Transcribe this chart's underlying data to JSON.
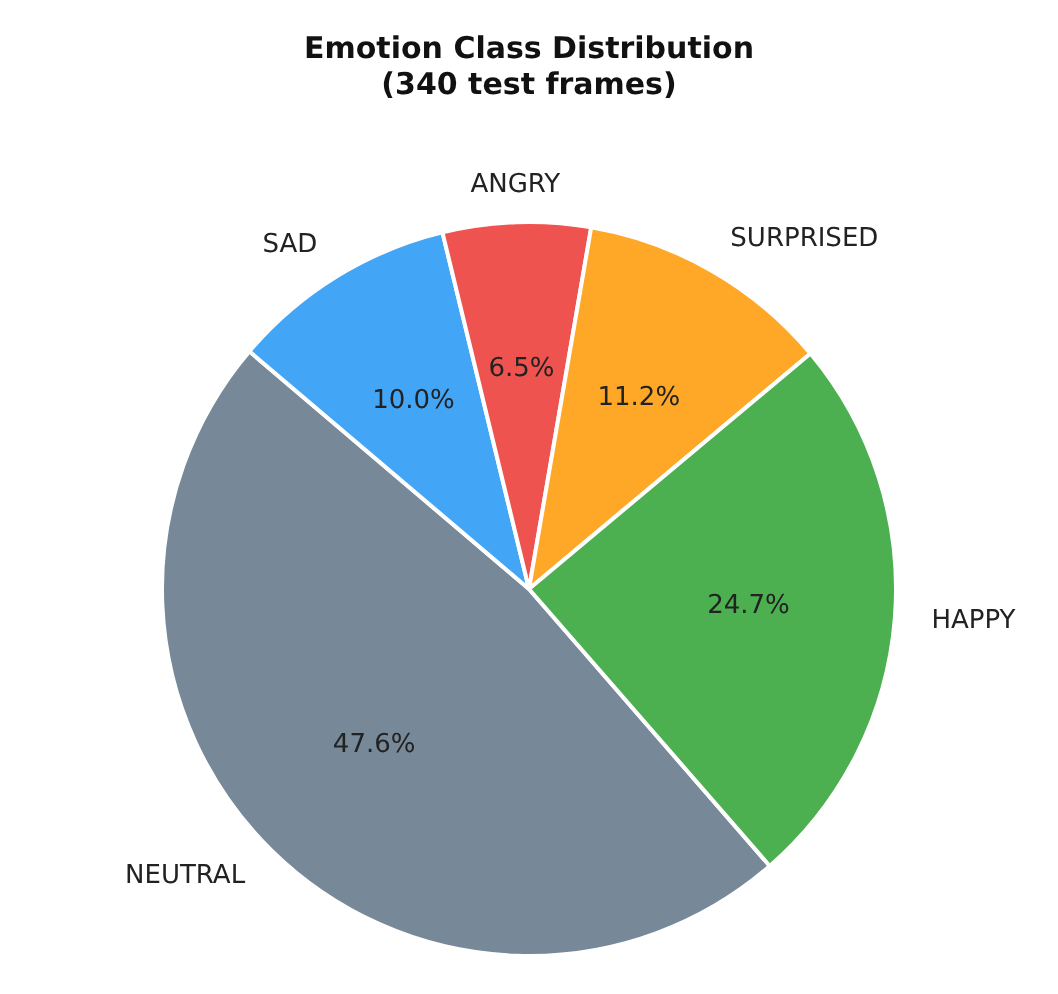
{
  "chart_data": {
    "type": "pie",
    "title": "Emotion Class Distribution\n(340 test frames)",
    "categories": [
      "NEUTRAL",
      "SAD",
      "ANGRY",
      "SURPRISED",
      "HAPPY"
    ],
    "values": [
      47.6,
      10.0,
      6.5,
      11.2,
      24.7
    ],
    "colors": [
      "#778899",
      "#42a5f5",
      "#ef5350",
      "#ffa726",
      "#4caf50"
    ],
    "value_labels": [
      "47.6%",
      "10.0%",
      "6.5%",
      "11.2%",
      "24.7%"
    ],
    "legend": false
  }
}
